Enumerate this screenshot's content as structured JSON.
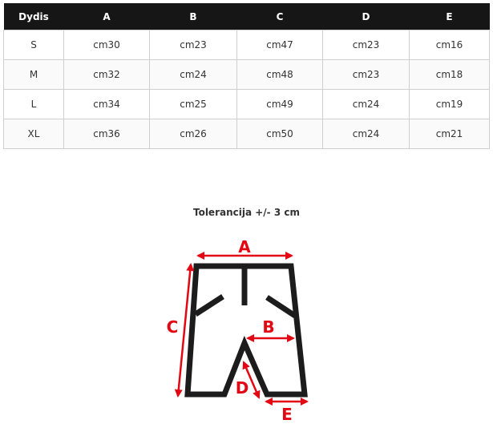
{
  "table": {
    "headers": [
      "Dydis",
      "A",
      "B",
      "C",
      "D",
      "E"
    ],
    "rows": [
      [
        "S",
        "cm30",
        "cm23",
        "cm47",
        "cm23",
        "cm16"
      ],
      [
        "M",
        "cm32",
        "cm24",
        "cm48",
        "cm23",
        "cm18"
      ],
      [
        "L",
        "cm34",
        "cm25",
        "cm49",
        "cm24",
        "cm19"
      ],
      [
        "XL",
        "cm36",
        "cm26",
        "cm50",
        "cm24",
        "cm21"
      ]
    ]
  },
  "tolerance": "Tolerancija +/- 3 cm",
  "diagram": {
    "labels": {
      "a": "A",
      "b": "B",
      "c": "C",
      "d": "D",
      "e": "E"
    },
    "accent_color": "#e30613",
    "outline_color": "#1c1c1c"
  }
}
